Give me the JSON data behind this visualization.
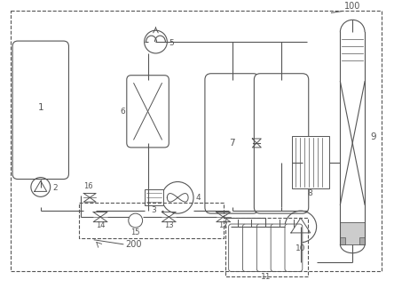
{
  "bg_color": "#ffffff",
  "lc": "#555555",
  "lw": 0.8,
  "fs": 6.5,
  "fig_w": 4.44,
  "fig_h": 3.24,
  "dpi": 100
}
